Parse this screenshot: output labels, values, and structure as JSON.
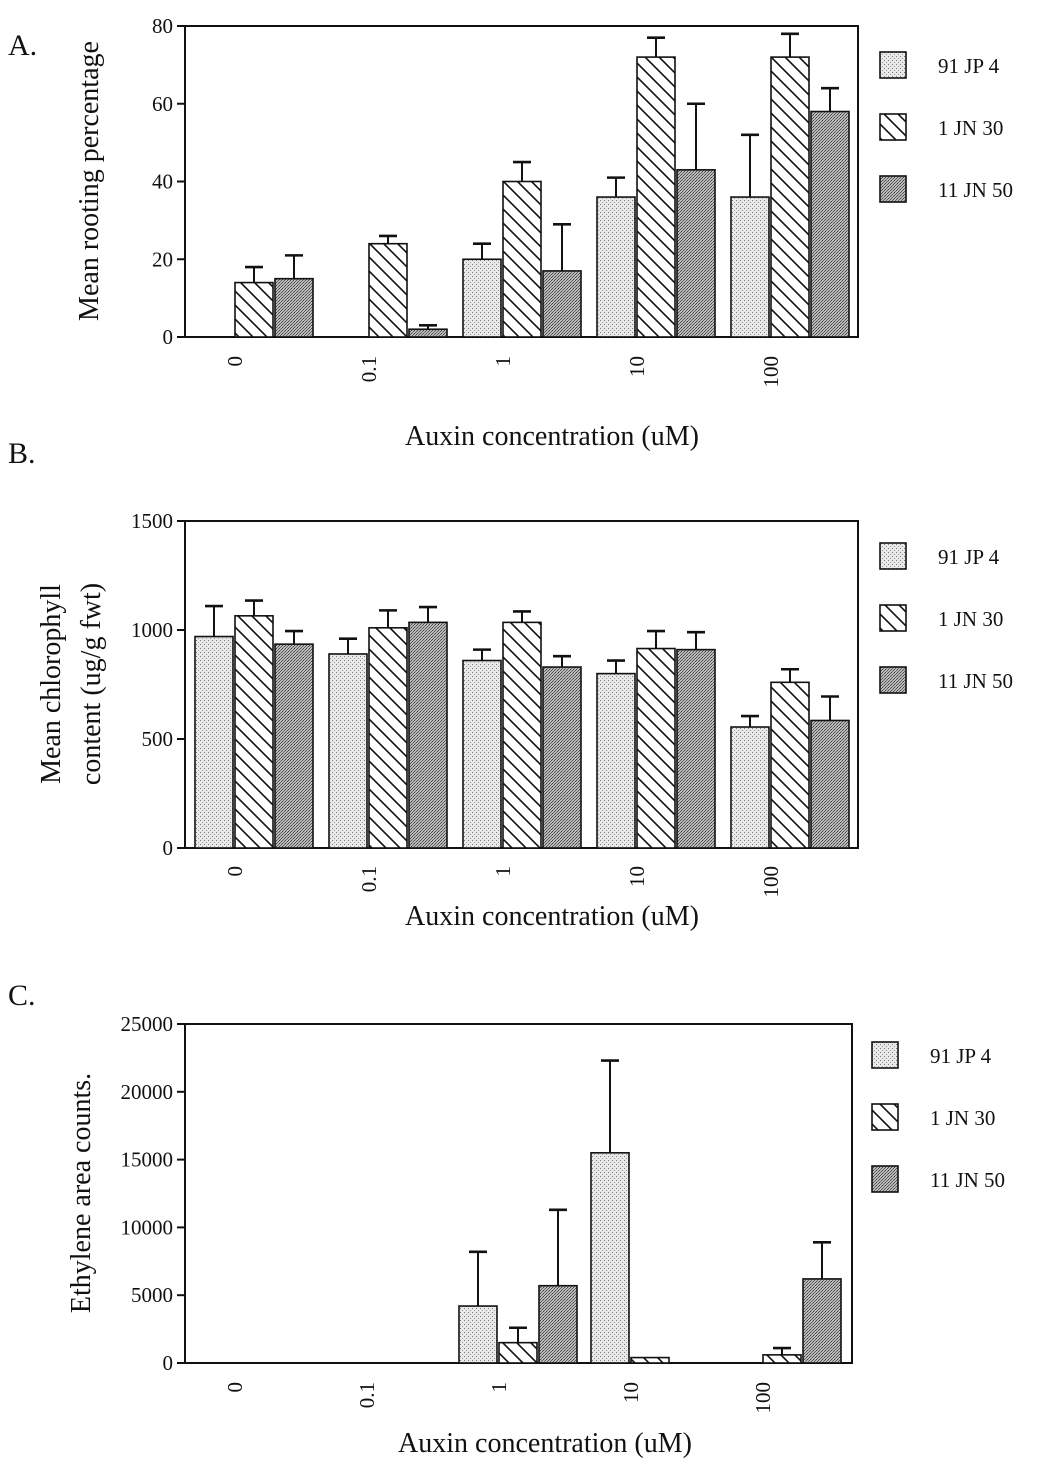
{
  "chart_data": [
    {
      "type": "bar",
      "panel_label": "A.",
      "ylabel": "Mean rooting percentage",
      "xlabel": "Auxin concentration (uM)",
      "categories": [
        "0",
        "0.1",
        "1",
        "10",
        "100"
      ],
      "ylim": [
        0,
        80
      ],
      "yticks": [
        "0",
        "20",
        "40",
        "60",
        "80"
      ],
      "ytick_values": [
        0,
        20,
        40,
        60,
        80
      ],
      "grid": false,
      "legend_position": "right",
      "series": [
        {
          "name": "91 JP 4",
          "pattern": "light-stipple",
          "values": [
            0,
            0,
            20,
            36,
            36
          ],
          "errors": [
            0,
            0,
            4,
            5,
            16
          ]
        },
        {
          "name": "1 JN 30",
          "pattern": "hatch",
          "values": [
            14,
            24,
            40,
            72,
            72
          ],
          "errors": [
            4,
            2,
            5,
            5,
            6
          ]
        },
        {
          "name": "11 JN 50",
          "pattern": "dark-stipple",
          "values": [
            15,
            2,
            17,
            43,
            58
          ],
          "errors": [
            6,
            1,
            12,
            17,
            6
          ]
        }
      ]
    },
    {
      "type": "bar",
      "panel_label": "B.",
      "ylabel": "Mean chlorophyll content (ug/g fwt)",
      "ylabel_lines": [
        "Mean chlorophyll",
        "content (ug/g fwt)"
      ],
      "xlabel": "Auxin concentration (uM)",
      "categories": [
        "0",
        "0.1",
        "1",
        "10",
        "100"
      ],
      "ylim": [
        0,
        1500
      ],
      "yticks": [
        "0",
        "500",
        "1000",
        "1500"
      ],
      "ytick_values": [
        0,
        500,
        1000,
        1500
      ],
      "grid": false,
      "legend_position": "right",
      "series": [
        {
          "name": "91 JP 4",
          "pattern": "light-stipple",
          "values": [
            970,
            890,
            860,
            800,
            555
          ],
          "errors": [
            140,
            70,
            50,
            60,
            50
          ]
        },
        {
          "name": "1 JN 30",
          "pattern": "hatch",
          "values": [
            1065,
            1010,
            1035,
            915,
            760
          ],
          "errors": [
            70,
            80,
            50,
            80,
            60
          ]
        },
        {
          "name": "11 JN 50",
          "pattern": "dark-stipple",
          "values": [
            935,
            1035,
            830,
            910,
            585
          ],
          "errors": [
            60,
            70,
            50,
            80,
            110
          ]
        }
      ]
    },
    {
      "type": "bar",
      "panel_label": "C.",
      "ylabel": "Ethylene area counts.",
      "xlabel": "Auxin concentration (uM)",
      "categories": [
        "0",
        "0.1",
        "1",
        "10",
        "100"
      ],
      "ylim": [
        0,
        25000
      ],
      "yticks": [
        "0",
        "5000",
        "10000",
        "15000",
        "20000",
        "25000"
      ],
      "ytick_values": [
        0,
        5000,
        10000,
        15000,
        20000,
        25000
      ],
      "grid": false,
      "legend_position": "right",
      "series": [
        {
          "name": "91 JP 4",
          "pattern": "light-stipple",
          "values": [
            0,
            0,
            4200,
            15500,
            0
          ],
          "errors": [
            0,
            0,
            4000,
            6800,
            0
          ]
        },
        {
          "name": "1 JN 30",
          "pattern": "hatch",
          "values": [
            0,
            0,
            1500,
            400,
            600
          ],
          "errors": [
            0,
            0,
            1100,
            0,
            500
          ]
        },
        {
          "name": "11 JN 50",
          "pattern": "dark-stipple",
          "values": [
            0,
            0,
            5700,
            0,
            6200
          ],
          "errors": [
            0,
            0,
            5600,
            0,
            2700
          ]
        }
      ]
    }
  ]
}
